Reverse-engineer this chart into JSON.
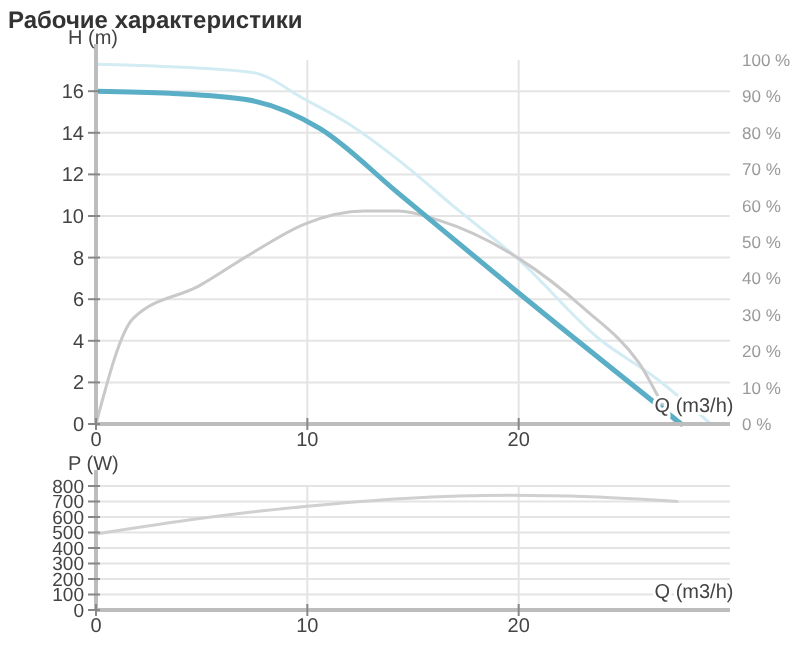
{
  "chart_data": [
    {
      "type": "line",
      "title": "Рабочие характеристики",
      "xlabel": "Q (m3/h)",
      "ylabel": "H (m)",
      "xlim": [
        0,
        30
      ],
      "xticks": [
        0,
        10,
        20
      ],
      "ylim": [
        0,
        17.5
      ],
      "yticks": [
        0,
        2,
        4,
        6,
        8,
        10,
        12,
        14,
        16
      ],
      "y2lim": [
        0,
        100
      ],
      "y2ticks": [
        {
          "value": 0,
          "label": "0 %"
        },
        {
          "value": 10,
          "label": "10 %"
        },
        {
          "value": 20,
          "label": "20 %"
        },
        {
          "value": 30,
          "label": "30 %"
        },
        {
          "value": 40,
          "label": "40 %"
        },
        {
          "value": 50,
          "label": "50 %"
        },
        {
          "value": 60,
          "label": "60 %"
        },
        {
          "value": 70,
          "label": "70 %"
        },
        {
          "value": 80,
          "label": "80 %"
        },
        {
          "value": 90,
          "label": "90 %"
        },
        {
          "value": 100,
          "label": "100 %"
        }
      ],
      "grid": true,
      "marker": "none",
      "series": [
        {
          "color": "#d3ecf4",
          "x": [
            0,
            3,
            7.4,
            9.9,
            12,
            14.3,
            17,
            20,
            23.8,
            26.5,
            29.1
          ],
          "values": [
            17.3,
            17.2,
            16.9,
            15.6,
            14.4,
            12.7,
            10.4,
            7.9,
            4.1,
            2.2,
            0
          ]
        },
        {
          "color": "#c9c9c9",
          "axis": "y2",
          "x": [
            0,
            1.76,
            4.9,
            7.4,
            9.9,
            12.7,
            14.3,
            16.2,
            20,
            23.1,
            25.7,
            27.2,
            27.5
          ],
          "values": [
            0,
            29,
            38,
            47,
            55,
            58.5,
            58.5,
            56,
            45.5,
            31.7,
            16.7,
            2,
            0
          ]
        },
        {
          "color": "#5aaec6",
          "x": [
            0,
            3.5,
            7.1,
            10.6,
            14.3,
            20,
            27.7
          ],
          "values": [
            16,
            15.9,
            15.6,
            14.2,
            11.1,
            6.3,
            0
          ]
        }
      ]
    },
    {
      "type": "line",
      "xlabel": "Q (m3/h)",
      "ylabel": "P (W)",
      "xlim": [
        0,
        30
      ],
      "xticks": [
        0,
        10,
        20
      ],
      "ylim": [
        0,
        800
      ],
      "yticks": [
        0,
        100,
        200,
        300,
        400,
        500,
        600,
        700,
        800
      ],
      "grid": true,
      "marker": "none",
      "series": [
        {
          "color": "#d0d0d0",
          "x": [
            0,
            4.9,
            10,
            14.6,
            19.6,
            23.4,
            27.5
          ],
          "values": [
            490,
            590,
            670,
            720,
            740,
            730,
            700
          ]
        }
      ]
    }
  ]
}
